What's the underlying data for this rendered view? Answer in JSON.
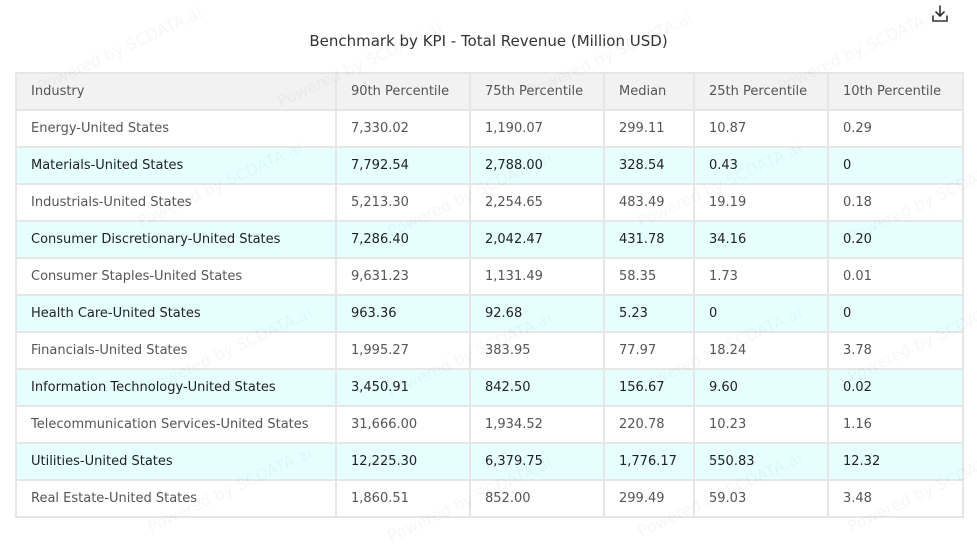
{
  "chart_data": {
    "type": "table",
    "title": "Benchmark by KPI - Total Revenue (Million USD)",
    "columns": [
      "Industry",
      "90th Percentile",
      "75th Percentile",
      "Median",
      "25th Percentile",
      "10th Percentile"
    ],
    "rows": [
      [
        "Energy-United States",
        "7,330.02",
        "1,190.07",
        "299.11",
        "10.87",
        "0.29"
      ],
      [
        "Materials-United States",
        "7,792.54",
        "2,788.00",
        "328.54",
        "0.43",
        "0"
      ],
      [
        "Industrials-United States",
        "5,213.30",
        "2,254.65",
        "483.49",
        "19.19",
        "0.18"
      ],
      [
        "Consumer Discretionary-United States",
        "7,286.40",
        "2,042.47",
        "431.78",
        "34.16",
        "0.20"
      ],
      [
        "Consumer Staples-United States",
        "9,631.23",
        "1,131.49",
        "58.35",
        "1.73",
        "0.01"
      ],
      [
        "Health Care-United States",
        "963.36",
        "92.68",
        "5.23",
        "0",
        "0"
      ],
      [
        "Financials-United States",
        "1,995.27",
        "383.95",
        "77.97",
        "18.24",
        "3.78"
      ],
      [
        "Information Technology-United States",
        "3,450.91",
        "842.50",
        "156.67",
        "9.60",
        "0.02"
      ],
      [
        "Telecommunication Services-United States",
        "31,666.00",
        "1,934.52",
        "220.78",
        "10.23",
        "1.16"
      ],
      [
        "Utilities-United States",
        "12,225.30",
        "6,379.75",
        "1,776.17",
        "550.83",
        "12.32"
      ],
      [
        "Real Estate-United States",
        "1,860.51",
        "852.00",
        "299.49",
        "59.03",
        "3.48"
      ]
    ]
  },
  "watermark_text": "Powered by SCDATA.ai",
  "icons": {
    "download": "download-icon"
  },
  "colors": {
    "header_bg": "#f2f2f2",
    "alt_row_bg": "#e6ffff",
    "border": "#e6e6e6"
  }
}
